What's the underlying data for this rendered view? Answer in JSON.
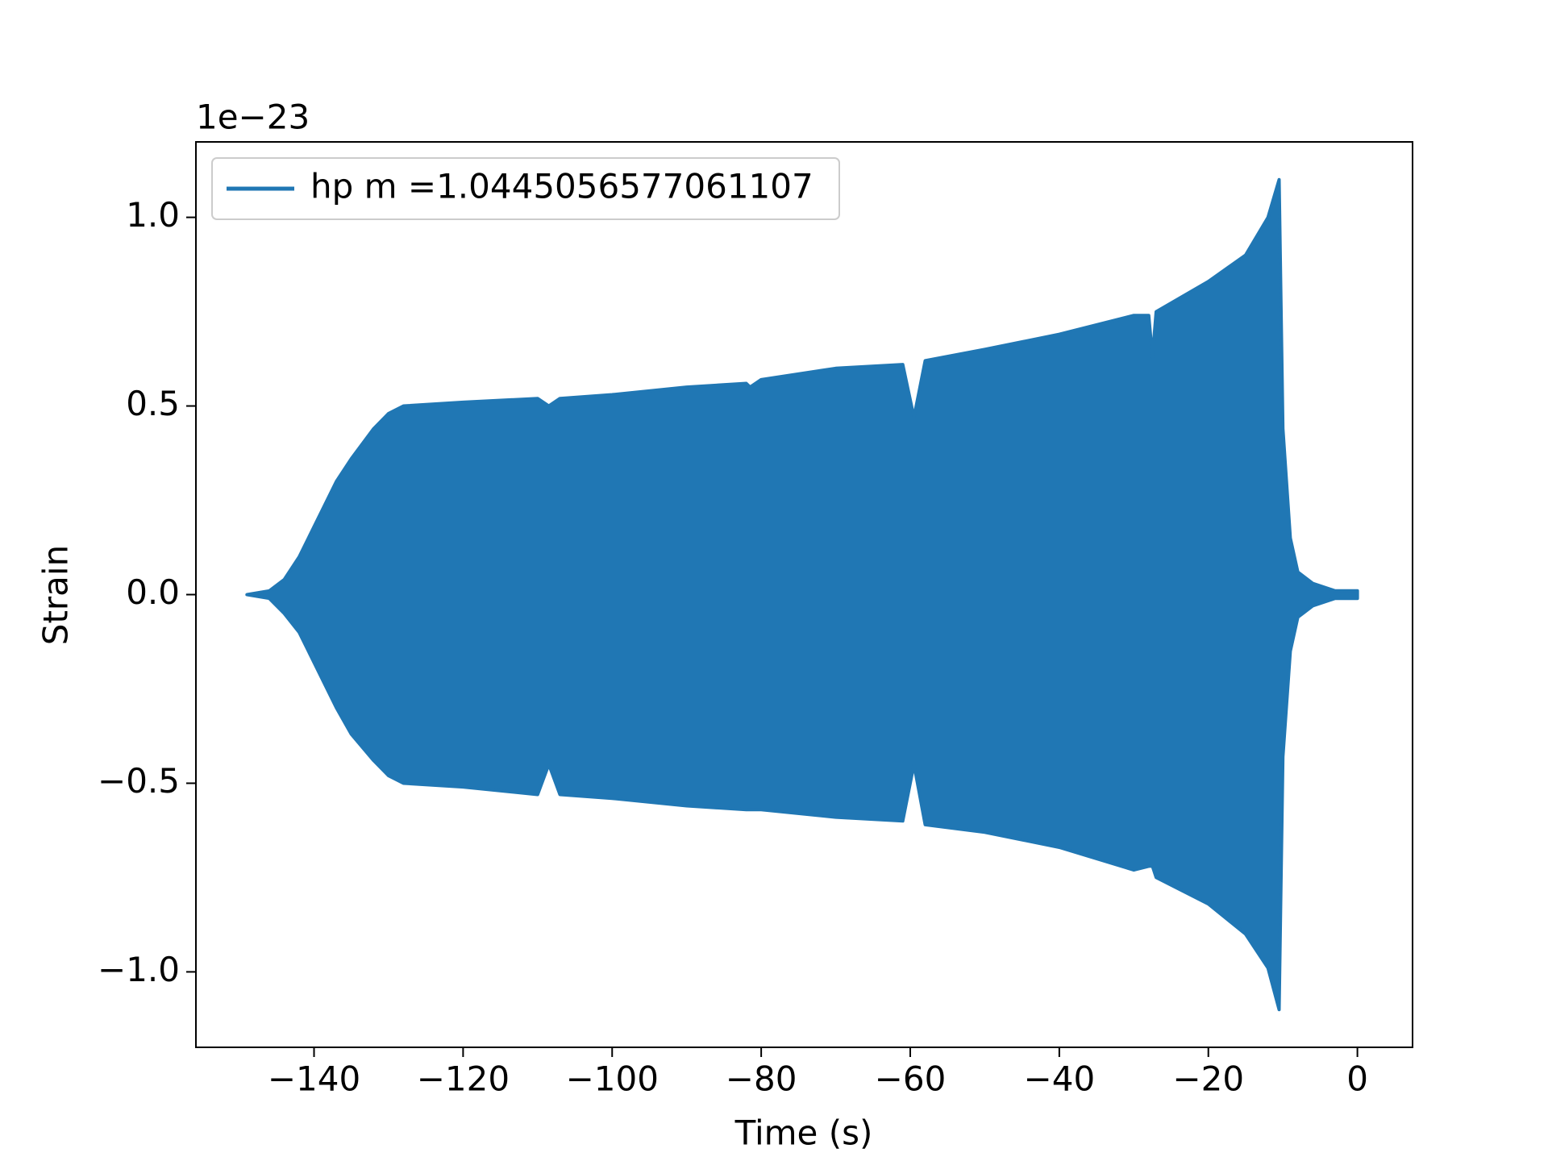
{
  "chart_data": {
    "type": "band",
    "xlabel": "Time (s)",
    "ylabel": "Strain",
    "offset_text": "1e−23",
    "legend": "upper left",
    "series": [
      {
        "name": "hp m =1.0445056577061107",
        "color": "#2077b4",
        "x": [
          -149,
          -146,
          -144,
          -142,
          -140,
          -137,
          -135,
          -132,
          -130,
          -128,
          -120,
          -110,
          -108.5,
          -107,
          -100,
          -90,
          -82,
          -81.5,
          -80,
          -70,
          -61,
          -59.5,
          -58,
          -50,
          -40,
          -30,
          -28,
          -27.5,
          -27,
          -20,
          -15,
          -12,
          -10.5,
          -10,
          -9,
          -8,
          -6,
          -3,
          0
        ],
        "upper": [
          0,
          0.01,
          0.04,
          0.1,
          0.18,
          0.3,
          0.36,
          0.44,
          0.48,
          0.5,
          0.51,
          0.52,
          0.5,
          0.52,
          0.53,
          0.55,
          0.56,
          0.55,
          0.57,
          0.6,
          0.61,
          0.47,
          0.62,
          0.65,
          0.69,
          0.74,
          0.74,
          0.63,
          0.75,
          0.83,
          0.9,
          1.0,
          1.1,
          0.44,
          0.15,
          0.06,
          0.03,
          0.01,
          0.01
        ],
        "lower": [
          0,
          -0.01,
          -0.05,
          -0.1,
          -0.18,
          -0.3,
          -0.37,
          -0.44,
          -0.48,
          -0.5,
          -0.51,
          -0.53,
          -0.45,
          -0.53,
          -0.54,
          -0.56,
          -0.57,
          -0.57,
          -0.57,
          -0.59,
          -0.6,
          -0.45,
          -0.61,
          -0.63,
          -0.67,
          -0.73,
          -0.72,
          -0.72,
          -0.75,
          -0.82,
          -0.9,
          -0.99,
          -1.1,
          -0.43,
          -0.15,
          -0.06,
          -0.03,
          -0.01,
          -0.01
        ]
      }
    ],
    "xlim": [
      -155.85,
      7.4
    ],
    "xticks": [
      {
        "value": -140,
        "label": "−140"
      },
      {
        "value": -120,
        "label": "−120"
      },
      {
        "value": -100,
        "label": "−100"
      },
      {
        "value": -80,
        "label": "−80"
      },
      {
        "value": -60,
        "label": "−60"
      },
      {
        "value": -40,
        "label": "−40"
      },
      {
        "value": -20,
        "label": "−20"
      },
      0
    ],
    "ylim": [
      -1.2,
      1.2
    ],
    "yticks": [
      {
        "value": -1.0,
        "label": "−1.0"
      },
      {
        "value": -0.5,
        "label": "−0.5"
      },
      {
        "value": 0.0,
        "label": "0.0"
      },
      {
        "value": 0.5,
        "label": "0.5"
      },
      {
        "value": 1.0,
        "label": "1.0"
      }
    ]
  }
}
